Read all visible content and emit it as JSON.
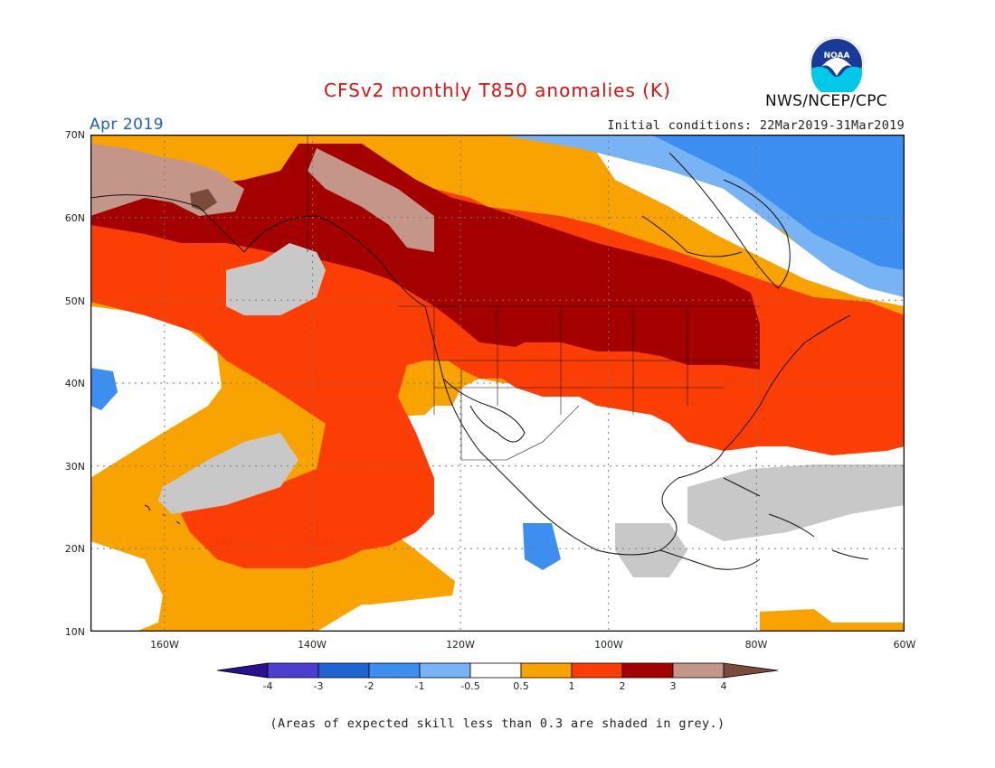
{
  "header": {
    "title": "CFSv2 monthly T850 anomalies (K)",
    "month": "Apr 2019",
    "initial_conditions": "Initial conditions: 22Mar2019-31Mar2019",
    "organization": "NWS/NCEP/CPC",
    "logo_text": "NOAA"
  },
  "map": {
    "lat_labels": [
      "70N",
      "60N",
      "50N",
      "40N",
      "30N",
      "20N",
      "10N"
    ],
    "lon_labels": [
      "160W",
      "140W",
      "120W",
      "100W",
      "80W",
      "60W"
    ],
    "extent": {
      "lon_min": -170,
      "lon_max": -60,
      "lat_min": 10,
      "lat_max": 70
    }
  },
  "colorbar": {
    "labels": [
      "-4",
      "-3",
      "-2",
      "-1",
      "-0.5",
      "0.5",
      "1",
      "2",
      "3",
      "4"
    ],
    "colors": [
      "#2a0f8f",
      "#4a3fd0",
      "#1e64d2",
      "#3c8ef0",
      "#78b4f5",
      "#ffffff",
      "#f8a300",
      "#fc3e05",
      "#a50000",
      "#c4968a",
      "#7a4a3a"
    ]
  },
  "footer": {
    "note": "(Areas of expected skill less than 0.3 are shaded in grey.)"
  },
  "colors": {
    "grey": "#c8c8c8",
    "title_red": "#dd1111",
    "month_blue": "#1e5ccc"
  }
}
